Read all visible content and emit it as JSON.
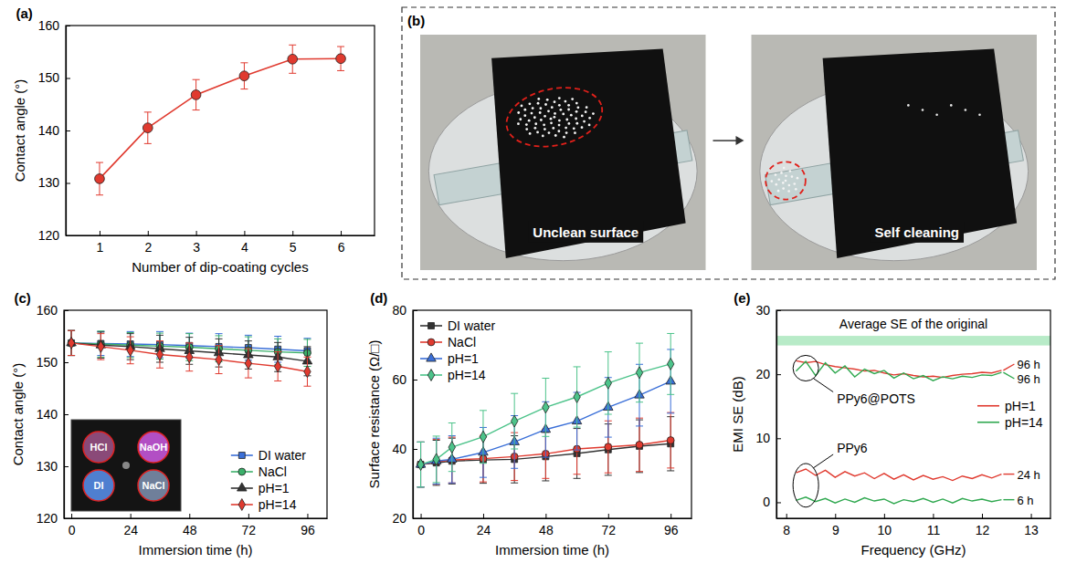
{
  "chart_data": [
    {
      "type": "line",
      "label": "(a)",
      "x_label": "Number of dip-coating cycles",
      "y_label": "Contact angle (°)",
      "x": [
        1,
        2,
        3,
        4,
        5,
        6
      ],
      "values": [
        130.8,
        140.5,
        146.8,
        150.4,
        153.6,
        153.7
      ],
      "errors": [
        3.1,
        3.0,
        2.9,
        2.5,
        2.7,
        2.3
      ],
      "color": "#e03a2f",
      "marker": "circle",
      "xlim": [
        0.3,
        6.7
      ],
      "xticks": [
        1,
        2,
        3,
        4,
        5,
        6
      ],
      "ylim": [
        120,
        160
      ],
      "yticks": [
        120,
        130,
        140,
        150,
        160
      ]
    },
    {
      "type": "photo",
      "label": "(b)",
      "captions": [
        "Unclean surface",
        "Self cleaning"
      ]
    },
    {
      "type": "line",
      "label": "(c)",
      "x_label": "Immersion time (h)",
      "y_label": "Contact angle (°)",
      "x": [
        0,
        12,
        24,
        36,
        48,
        60,
        72,
        84,
        96
      ],
      "series": [
        {
          "name": "DI water",
          "color": "#3a6fd8",
          "marker": "square",
          "values": [
            153.7,
            153.6,
            153.5,
            153.4,
            153.2,
            153.0,
            152.8,
            152.5,
            152.2
          ],
          "errors": [
            2.4,
            2.3,
            2.4,
            2.5,
            2.4,
            2.5,
            2.4,
            2.5,
            2.4
          ]
        },
        {
          "name": "NaCl",
          "color": "#3bb06a",
          "marker": "circle",
          "values": [
            153.7,
            153.5,
            153.3,
            153.1,
            152.9,
            152.6,
            152.3,
            152.0,
            151.8
          ],
          "errors": [
            2.4,
            2.5,
            2.4,
            2.5,
            2.6,
            2.5,
            2.6,
            2.5,
            2.6
          ]
        },
        {
          "name": "pH=1",
          "color": "#333333",
          "marker": "triangle",
          "values": [
            153.7,
            153.3,
            153.0,
            152.6,
            152.2,
            151.8,
            151.4,
            151.0,
            150.2
          ],
          "errors": [
            2.4,
            2.5,
            2.5,
            2.6,
            2.6,
            2.7,
            2.7,
            2.8,
            2.8
          ]
        },
        {
          "name": "pH=14",
          "color": "#e03a2f",
          "marker": "diamond",
          "values": [
            153.7,
            153.0,
            152.3,
            151.5,
            151.0,
            150.5,
            149.8,
            149.2,
            148.2
          ],
          "errors": [
            2.4,
            2.5,
            2.6,
            2.6,
            2.7,
            2.7,
            2.8,
            2.8,
            2.8
          ]
        }
      ],
      "xlim": [
        -3,
        104
      ],
      "xticks": [
        0,
        24,
        48,
        72,
        96
      ],
      "ylim": [
        120,
        160
      ],
      "yticks": [
        120,
        130,
        140,
        150,
        160
      ],
      "legend": "lower right",
      "inset_labels": [
        "HCl",
        "NaOH",
        "DI",
        "NaCl"
      ]
    },
    {
      "type": "line",
      "label": "(d)",
      "x_label": "Immersion time (h)",
      "y_label": "Surface resistance (Ω/□)",
      "x": [
        0,
        6,
        12,
        24,
        36,
        48,
        60,
        72,
        84,
        96
      ],
      "series": [
        {
          "name": "DI water",
          "color": "#333333",
          "marker": "square",
          "values": [
            35.5,
            36,
            36.5,
            36.8,
            37,
            37.8,
            38.7,
            39.8,
            40.8,
            41.5
          ],
          "errors": [
            6.5,
            6.5,
            6.6,
            6.7,
            6.8,
            7,
            7.2,
            7.4,
            7.6,
            7.8
          ]
        },
        {
          "name": "NaCl",
          "color": "#e03a2f",
          "marker": "circle",
          "values": [
            35.5,
            36.3,
            36.8,
            37.2,
            37.8,
            38.6,
            40,
            40.6,
            41.2,
            42.5
          ],
          "errors": [
            6.5,
            6.5,
            6.6,
            6.7,
            6.9,
            7.1,
            7.3,
            7.5,
            7.7,
            8
          ]
        },
        {
          "name": "pH=1",
          "color": "#3a6fd8",
          "marker": "triangle",
          "values": [
            35.5,
            36.5,
            37,
            39,
            42,
            45.6,
            48,
            52,
            55.5,
            59.5
          ],
          "errors": [
            6.5,
            6.6,
            6.8,
            7.2,
            7.6,
            8,
            8.3,
            8.6,
            8.9,
            9.2
          ]
        },
        {
          "name": "pH=14",
          "color": "#4cc38a",
          "marker": "diamond",
          "values": [
            35.5,
            37,
            40.5,
            43.5,
            48,
            52,
            55,
            59,
            62,
            64.5
          ],
          "errors": [
            6.5,
            6.7,
            7,
            7.6,
            8,
            8.4,
            8.7,
            9,
            8.5,
            8.8
          ]
        }
      ],
      "xlim": [
        -3,
        104
      ],
      "xticks": [
        0,
        24,
        48,
        72,
        96
      ],
      "ylim": [
        20,
        80
      ],
      "yticks": [
        20,
        40,
        60,
        80
      ],
      "legend": "upper left"
    },
    {
      "type": "line",
      "label": "(e)",
      "x_label": "Frequency (GHz)",
      "y_label": "EMI SE (dB)",
      "x": [
        8.2,
        8.4,
        8.6,
        8.8,
        9.0,
        9.2,
        9.4,
        9.6,
        9.8,
        10.0,
        10.2,
        10.4,
        10.6,
        10.8,
        11.0,
        11.2,
        11.4,
        11.6,
        11.8,
        12.0,
        12.2,
        12.4
      ],
      "series": [
        {
          "name": "pH=1",
          "group": "PPy6@POTS",
          "end_label": "96 h",
          "color": "#e03a2f",
          "values": [
            22.1,
            21.8,
            22.0,
            21.5,
            21.2,
            21.0,
            20.8,
            20.5,
            20.6,
            20.2,
            19.9,
            20.1,
            19.8,
            19.6,
            19.7,
            19.5,
            19.8,
            20.0,
            20.1,
            20.3,
            20.2,
            20.6
          ]
        },
        {
          "name": "pH=14",
          "group": "PPy6@POTS",
          "end_label": "96 h",
          "color": "#2fa84f",
          "values": [
            20.5,
            22.0,
            19.8,
            21.8,
            20.2,
            21.3,
            19.6,
            20.8,
            20.1,
            20.6,
            19.4,
            20.2,
            19.3,
            19.8,
            19.0,
            19.6,
            19.3,
            19.7,
            19.5,
            19.9,
            19.8,
            20.3
          ]
        },
        {
          "name": "pH=1",
          "group": "PPy6",
          "end_label": "24 h",
          "color": "#e03a2f",
          "values": [
            4.6,
            5.2,
            4.2,
            5.0,
            3.9,
            4.8,
            4.1,
            4.6,
            3.7,
            4.5,
            3.6,
            4.3,
            3.5,
            4.2,
            3.6,
            4.0,
            3.4,
            4.1,
            3.7,
            4.3,
            3.8,
            4.4
          ]
        },
        {
          "name": "pH=14",
          "group": "PPy6",
          "end_label": "6 h",
          "color": "#2fa84f",
          "values": [
            0.3,
            0.8,
            0.1,
            0.6,
            -0.1,
            0.5,
            0.0,
            0.7,
            0.2,
            0.5,
            -0.2,
            0.4,
            0.1,
            0.6,
            0.0,
            0.5,
            -0.1,
            0.6,
            0.2,
            0.5,
            0.1,
            0.4
          ]
        }
      ],
      "reference_band": {
        "label": "Average SE of the original",
        "range": [
          24.5,
          26
        ]
      },
      "xlim": [
        7.8,
        13.4
      ],
      "xticks": [
        8,
        9,
        10,
        11,
        12,
        13
      ],
      "ylim": [
        -2.5,
        30
      ],
      "yticks": [
        0,
        10,
        20,
        30
      ],
      "legend": "right"
    }
  ]
}
